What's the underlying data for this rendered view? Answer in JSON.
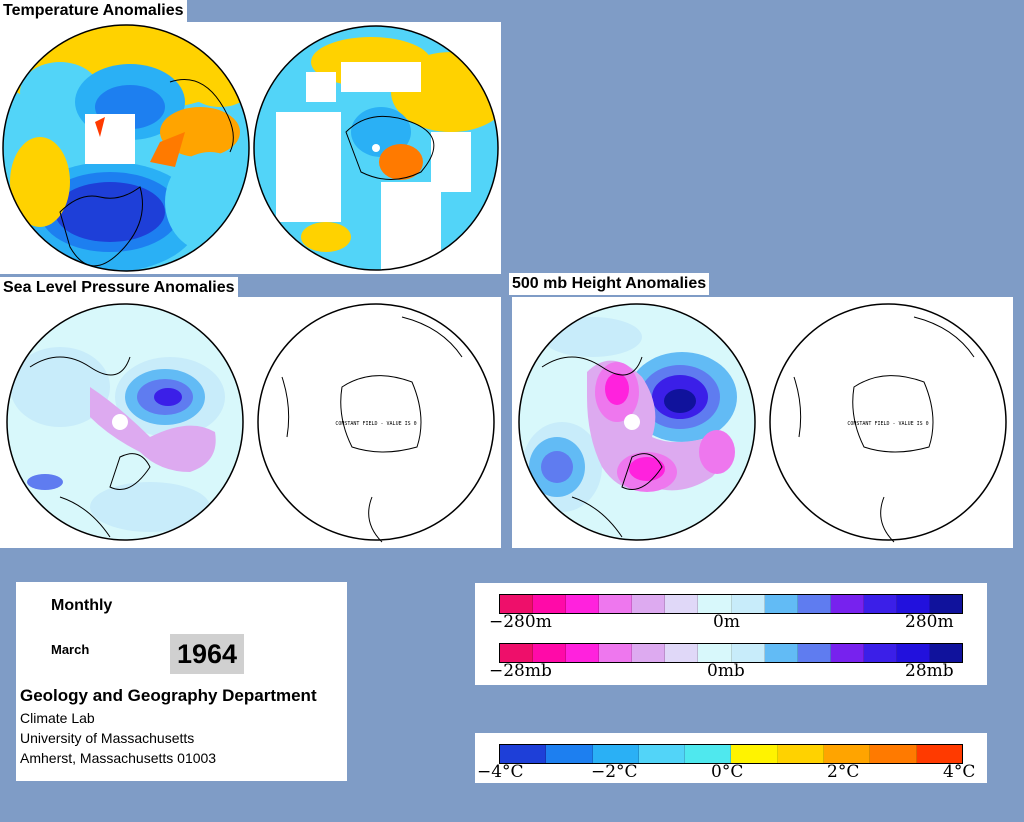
{
  "titles": {
    "temperature": "Temperature Anomalies",
    "slp": "Sea Level Pressure Anomalies",
    "height": "500 mb Height Anomalies"
  },
  "constant_field_note": "CONSTANT FIELD - VALUE IS 0",
  "info": {
    "period": "Monthly",
    "month": "March",
    "year": "1964",
    "department": "Geology and Geography Department",
    "lines": [
      "Climate Lab",
      "University of Massachusetts",
      "Amherst, Massachusetts 01003"
    ]
  },
  "scales": {
    "height": {
      "left": "−280m",
      "mid": "0m",
      "right": "280m"
    },
    "pressure": {
      "left": "−28mb",
      "mid": "0mb",
      "right": "28mb"
    },
    "temperature": {
      "t1": "−4°C",
      "t2": "−2°C",
      "t3": "0°C",
      "t4": "2°C",
      "t5": "4°C"
    }
  },
  "colors": {
    "background": "#7f9cc6",
    "anomaly_scale": [
      "#ee0f6a",
      "#ff0aa8",
      "#ff22dd",
      "#ee77ee",
      "#ddaaf0",
      "#e0d8f8",
      "#d8f8fb",
      "#c8ecfa",
      "#62bbf5",
      "#5f7cf0",
      "#7722ee",
      "#3b1fe8",
      "#2211dd",
      "#10129c"
    ],
    "temperature_scale": [
      "#1e3fd8",
      "#1d7ff0",
      "#2ab0f5",
      "#52d4f8",
      "#4fe8ee",
      "#fff300",
      "#ffd200",
      "#ffa400",
      "#ff7a00",
      "#ff3a00"
    ]
  }
}
